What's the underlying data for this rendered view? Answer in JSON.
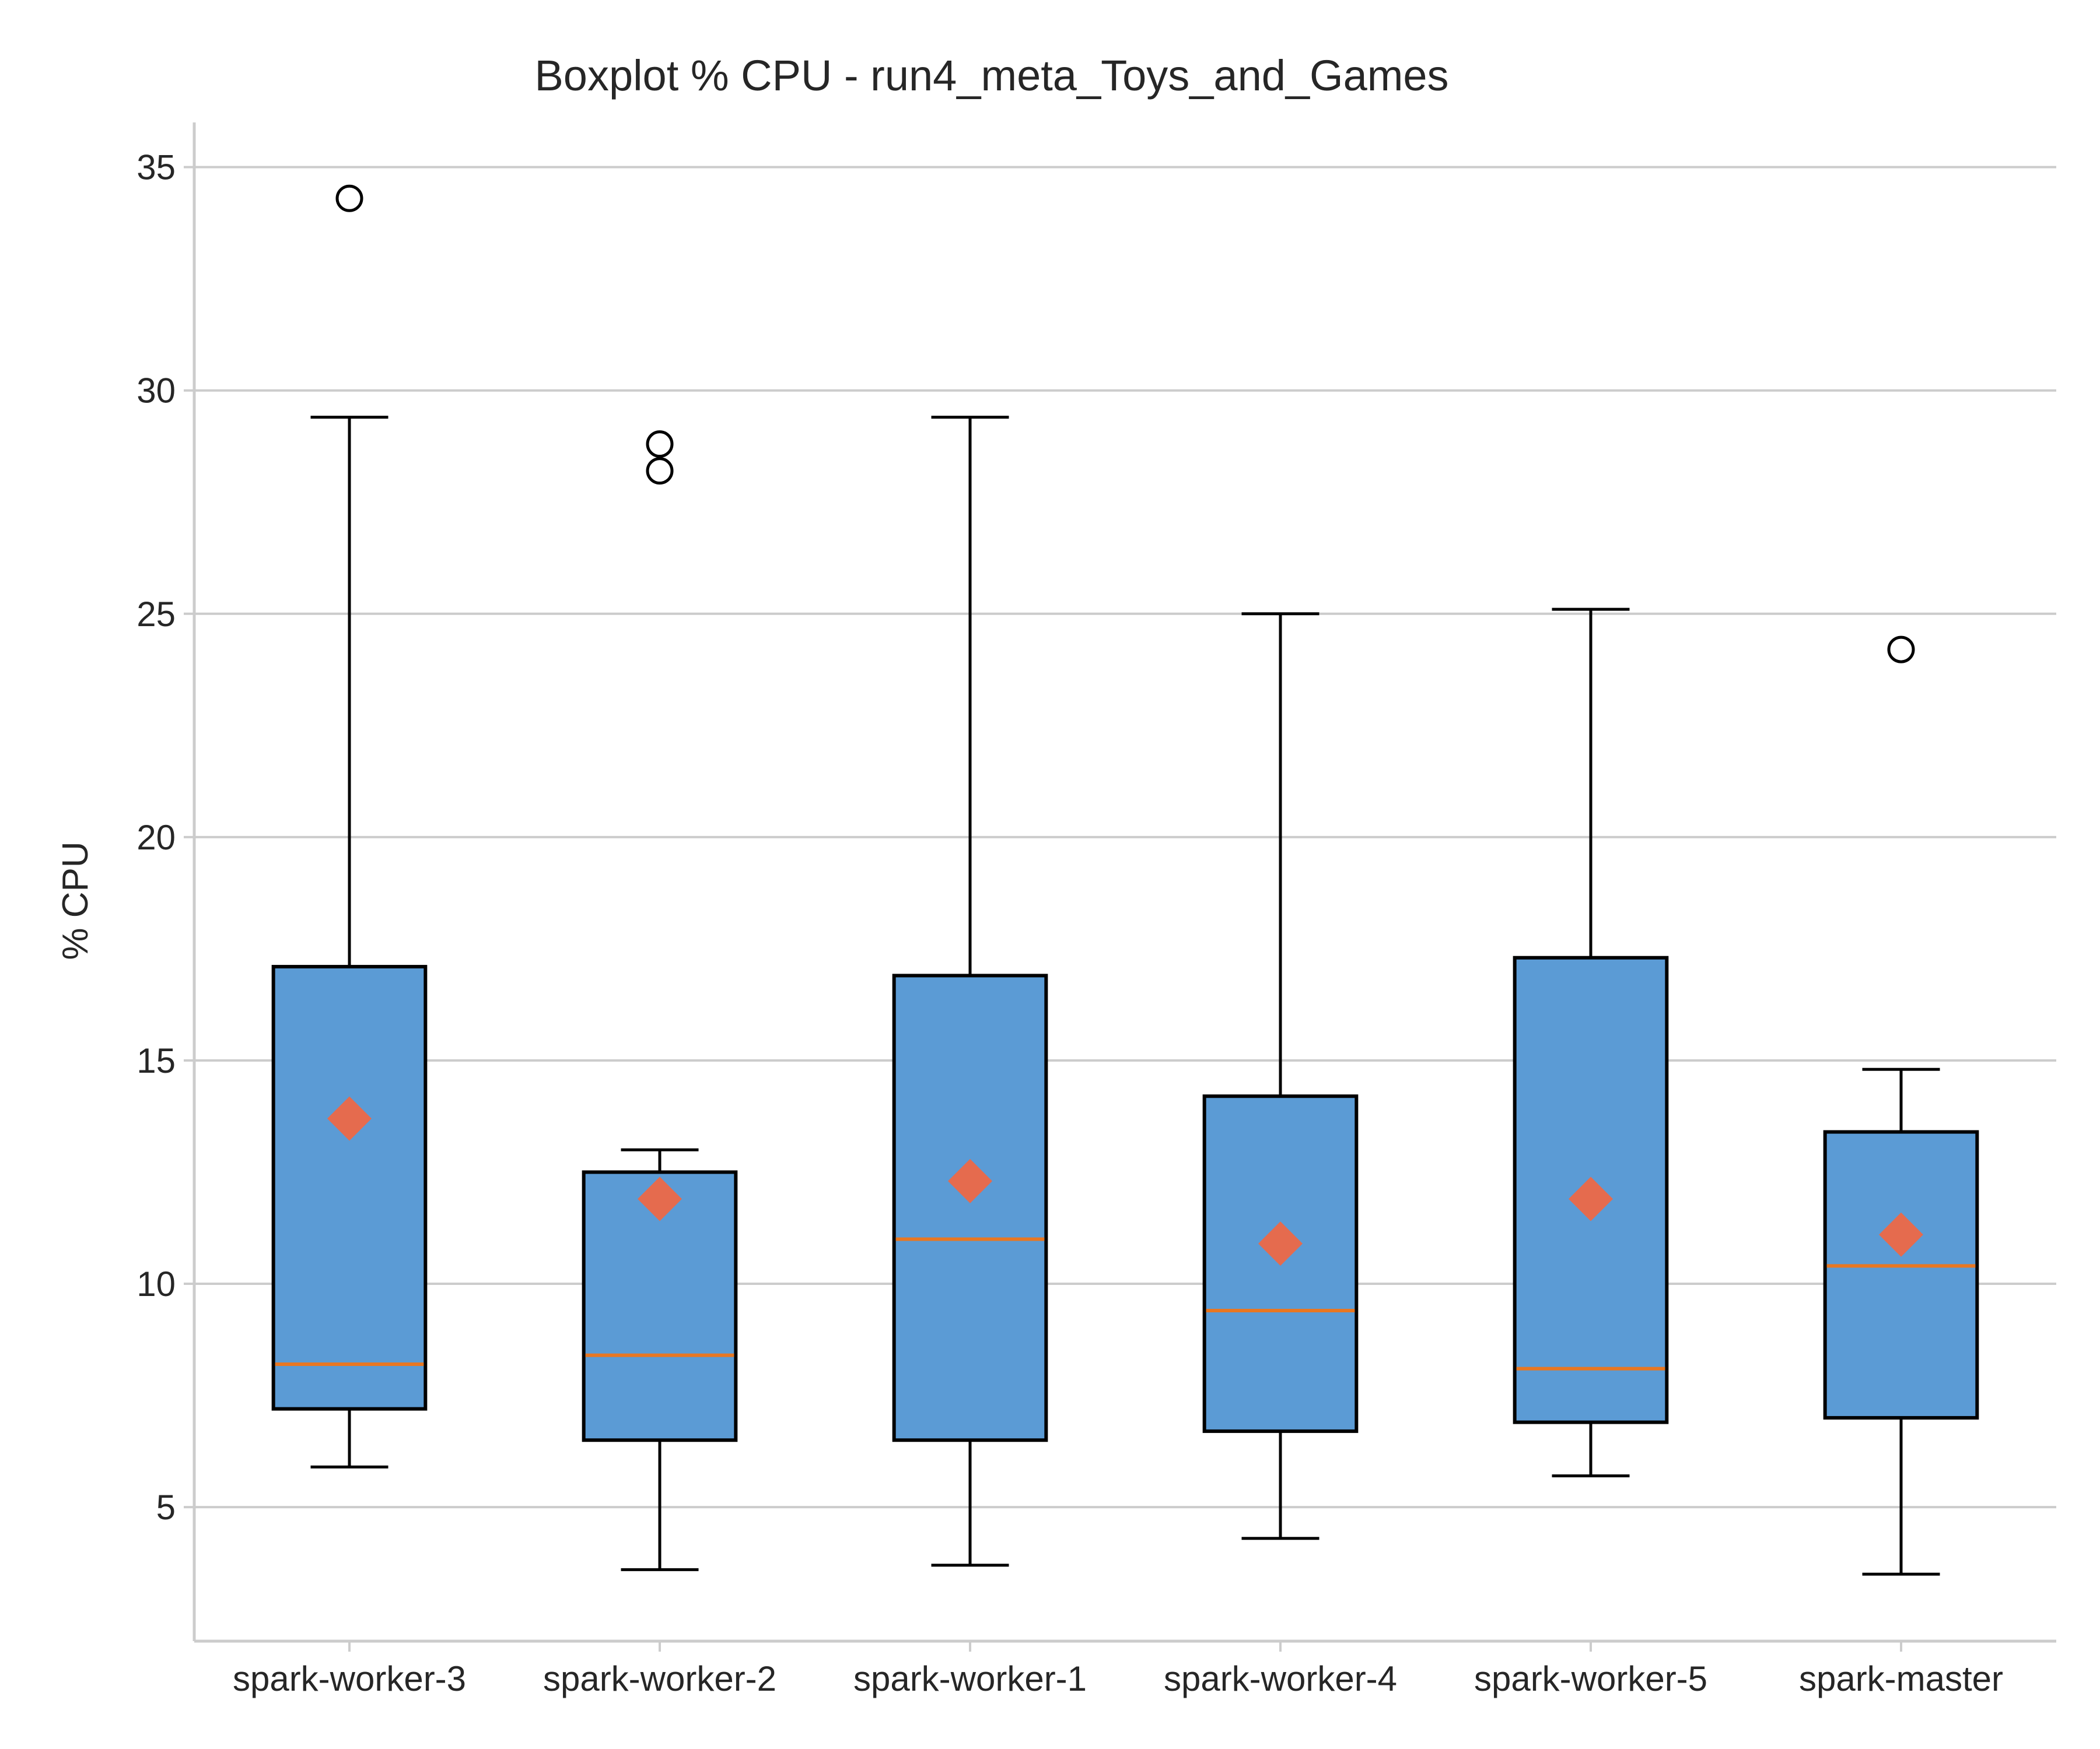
{
  "chart_data": {
    "type": "boxplot",
    "title": "Boxplot % CPU - run4_meta_Toys_and_Games",
    "xlabel": "",
    "ylabel": "% CPU",
    "ylim": [
      2,
      36
    ],
    "yticks": [
      5,
      10,
      15,
      20,
      25,
      30,
      35
    ],
    "grid": "horizontal",
    "colors": {
      "box_fill": "#5b9bd5",
      "median": "#e87722",
      "mean_marker": "#e56b4e",
      "grid": "#cccccc"
    },
    "categories": [
      "spark-worker-3",
      "spark-worker-2",
      "spark-worker-1",
      "spark-worker-4",
      "spark-worker-5",
      "spark-master"
    ],
    "boxes": [
      {
        "category": "spark-worker-3",
        "whisker_low": 5.9,
        "q1": 7.2,
        "median": 8.2,
        "q3": 17.1,
        "whisker_high": 29.4,
        "mean": 13.7,
        "outliers": [
          34.3
        ]
      },
      {
        "category": "spark-worker-2",
        "whisker_low": 3.6,
        "q1": 6.5,
        "median": 8.4,
        "q3": 12.5,
        "whisker_high": 13.0,
        "mean": 11.9,
        "outliers": [
          28.2,
          28.8
        ]
      },
      {
        "category": "spark-worker-1",
        "whisker_low": 3.7,
        "q1": 6.5,
        "median": 11.0,
        "q3": 16.9,
        "whisker_high": 29.4,
        "mean": 12.3,
        "outliers": []
      },
      {
        "category": "spark-worker-4",
        "whisker_low": 4.3,
        "q1": 6.7,
        "median": 9.4,
        "q3": 14.2,
        "whisker_high": 25.0,
        "mean": 10.9,
        "outliers": []
      },
      {
        "category": "spark-worker-5",
        "whisker_low": 5.7,
        "q1": 6.9,
        "median": 8.1,
        "q3": 17.3,
        "whisker_high": 25.1,
        "mean": 11.9,
        "outliers": []
      },
      {
        "category": "spark-master",
        "whisker_low": 3.5,
        "q1": 7.0,
        "median": 10.4,
        "q3": 13.4,
        "whisker_high": 14.8,
        "mean": 11.1,
        "outliers": [
          24.2
        ]
      }
    ]
  }
}
